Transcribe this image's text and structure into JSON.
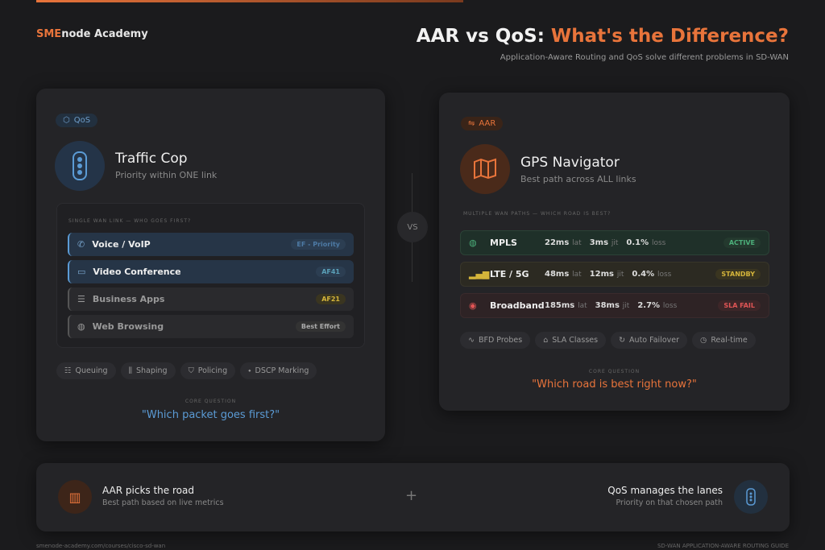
{
  "header": {
    "brand_accent": "SME",
    "brand_rest": "node Academy",
    "title_main": "AAR vs QoS:",
    "title_accent": "What's the Difference?",
    "subtitle": "Application-Aware Routing and QoS solve different problems in SD-WAN"
  },
  "qos": {
    "badge": "QoS",
    "title": "Traffic Cop",
    "subtitle": "Priority within ONE link",
    "section": "SINGLE WAN LINK — WHO GOES FIRST?",
    "rows": [
      {
        "label": "Voice / VoIP",
        "tag": "EF - Priority",
        "icon": "phone-icon"
      },
      {
        "label": "Video Conference",
        "tag": "AF41",
        "icon": "video-icon"
      },
      {
        "label": "Business Apps",
        "tag": "AF21",
        "icon": "database-icon"
      },
      {
        "label": "Web Browsing",
        "tag": "Best Effort",
        "icon": "globe-icon"
      }
    ],
    "chips": [
      "Queuing",
      "Shaping",
      "Policing",
      "DSCP Marking"
    ],
    "core_label": "CORE QUESTION",
    "core_question": "\"Which packet goes first?\""
  },
  "vs": "VS",
  "aar": {
    "badge": "AAR",
    "title": "GPS Navigator",
    "subtitle": "Best path across ALL links",
    "section": "MULTIPLE WAN PATHS — WHICH ROAD IS BEST?",
    "paths": [
      {
        "name": "MPLS",
        "lat": "22ms",
        "jit": "3ms",
        "loss": "0.1%",
        "status": "ACTIVE"
      },
      {
        "name": "LTE / 5G",
        "lat": "48ms",
        "jit": "12ms",
        "loss": "0.4%",
        "status": "STANDBY"
      },
      {
        "name": "Broadband",
        "lat": "185ms",
        "jit": "38ms",
        "loss": "2.7%",
        "status": "SLA FAIL"
      }
    ],
    "units": {
      "lat": "lat",
      "jit": "jit",
      "loss": "loss"
    },
    "chips": [
      "BFD Probes",
      "SLA Classes",
      "Auto Failover",
      "Real-time"
    ],
    "core_label": "CORE QUESTION",
    "core_question": "\"Which road is best right now?\""
  },
  "bottom": {
    "left_title": "AAR picks the road",
    "left_sub": "Best path based on live metrics",
    "plus": "+",
    "right_title": "QoS manages the lanes",
    "right_sub": "Priority on that chosen path"
  },
  "footer": {
    "left": "smenode-academy.com/courses/cisco-sd-wan",
    "right": "SD-WAN APPLICATION-AWARE ROUTING GUIDE"
  },
  "colors": {
    "accent": "#e8743b",
    "qos": "#5b9bd5",
    "active": "#4caf7a",
    "standby": "#d4b43a",
    "fail": "#e05555"
  }
}
